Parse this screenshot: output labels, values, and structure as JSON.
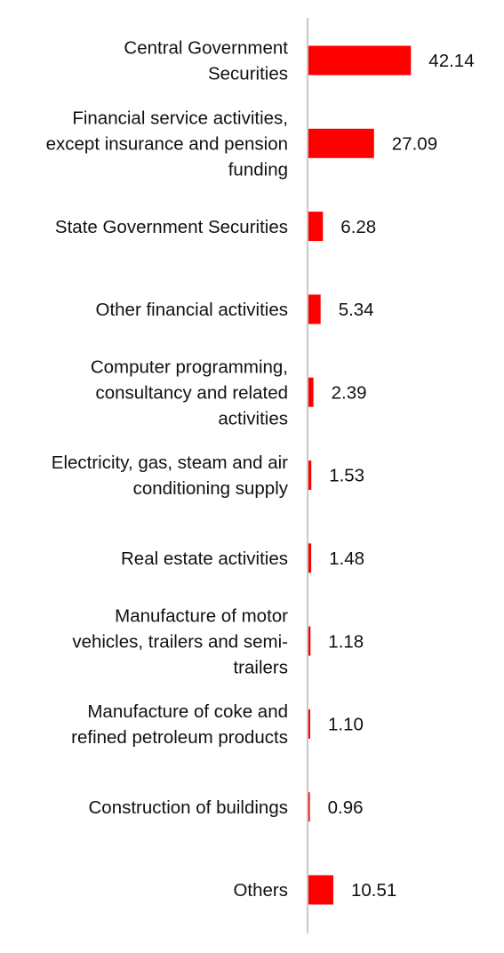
{
  "chart_data": {
    "type": "bar",
    "orientation": "horizontal",
    "title": "",
    "xlabel": "",
    "ylabel": "",
    "grid": false,
    "legend": "none",
    "bar_color": "#ff0000",
    "axis_color": "#c8c8c8",
    "value_format": "2dp",
    "xlim": [
      0,
      50
    ],
    "categories": [
      [
        "Central Government",
        "Securities"
      ],
      [
        "Financial service activities,",
        "except insurance and pension",
        "funding"
      ],
      [
        "State Government Securities"
      ],
      [
        "Other financial activities"
      ],
      [
        "Computer programming,",
        "consultancy and related",
        "activities"
      ],
      [
        "Electricity, gas, steam and air",
        "conditioning supply"
      ],
      [
        "Real estate activities"
      ],
      [
        "Manufacture of motor",
        "vehicles, trailers and semi-",
        "trailers"
      ],
      [
        "Manufacture of coke and",
        "refined petroleum products"
      ],
      [
        "Construction of buildings"
      ],
      [
        "Others"
      ]
    ],
    "values": [
      42.14,
      27.09,
      6.28,
      5.34,
      2.39,
      1.53,
      1.48,
      1.18,
      1.1,
      0.96,
      10.51
    ]
  }
}
